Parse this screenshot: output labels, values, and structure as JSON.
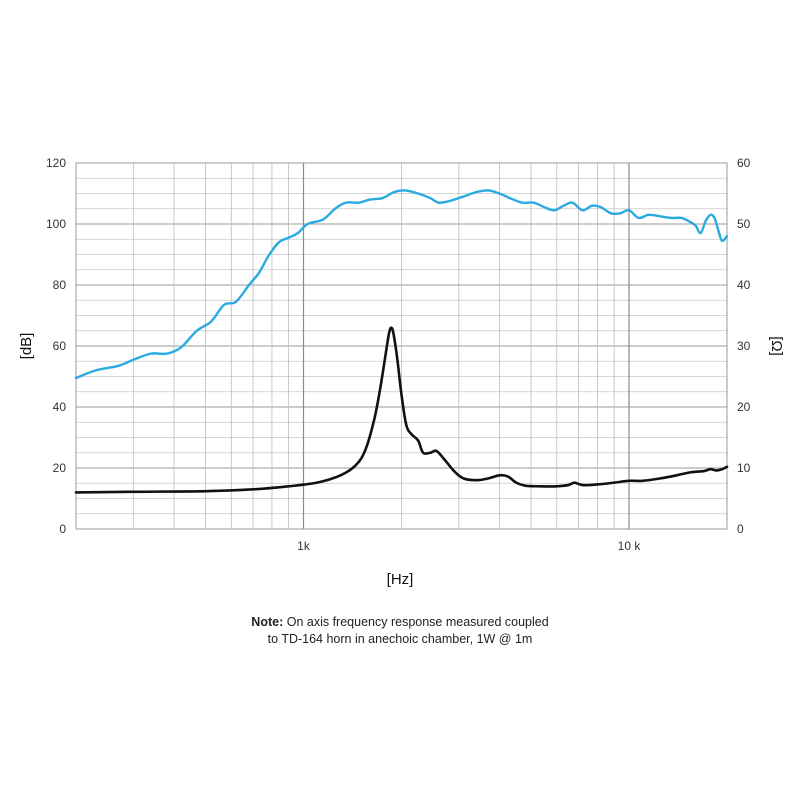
{
  "chart_data": {
    "type": "line",
    "x_scale": "log",
    "xlabel": "[Hz]",
    "ylabel": "[dB]",
    "y2label": "[Ω]",
    "xlim": [
      200,
      20000
    ],
    "ylim": [
      0,
      120
    ],
    "y2lim": [
      0,
      60
    ],
    "x_tick_labels": [
      {
        "value": 1000,
        "label": "1k"
      },
      {
        "value": 10000,
        "label": "10 k"
      }
    ],
    "y_ticks": [
      0,
      20,
      40,
      60,
      80,
      100,
      120
    ],
    "y2_ticks": [
      0,
      10,
      20,
      30,
      40,
      50,
      60
    ],
    "grid": true,
    "series": [
      {
        "axis": "left",
        "color": "#29abe2",
        "points": [
          [
            200,
            49.5
          ],
          [
            230,
            52
          ],
          [
            270,
            53.5
          ],
          [
            300,
            55.5
          ],
          [
            340,
            57.5
          ],
          [
            380,
            57.5
          ],
          [
            420,
            59.5
          ],
          [
            470,
            65
          ],
          [
            520,
            68
          ],
          [
            570,
            73.5
          ],
          [
            620,
            74.5
          ],
          [
            680,
            80
          ],
          [
            730,
            84
          ],
          [
            780,
            89.5
          ],
          [
            840,
            94
          ],
          [
            900,
            95.5
          ],
          [
            960,
            97
          ],
          [
            1030,
            100
          ],
          [
            1150,
            101.5
          ],
          [
            1250,
            105
          ],
          [
            1350,
            107
          ],
          [
            1480,
            107
          ],
          [
            1600,
            108
          ],
          [
            1750,
            108.5
          ],
          [
            1900,
            110.5
          ],
          [
            2050,
            111
          ],
          [
            2250,
            110
          ],
          [
            2450,
            108.5
          ],
          [
            2600,
            107
          ],
          [
            2800,
            107.5
          ],
          [
            3100,
            109
          ],
          [
            3400,
            110.5
          ],
          [
            3700,
            111
          ],
          [
            4000,
            110
          ],
          [
            4300,
            108.5
          ],
          [
            4700,
            107
          ],
          [
            5100,
            107
          ],
          [
            5500,
            105.5
          ],
          [
            5900,
            104.5
          ],
          [
            6300,
            106
          ],
          [
            6700,
            107
          ],
          [
            7200,
            104.5
          ],
          [
            7700,
            106
          ],
          [
            8200,
            105.5
          ],
          [
            8800,
            103.5
          ],
          [
            9400,
            103.5
          ],
          [
            10000,
            104.5
          ],
          [
            10700,
            102
          ],
          [
            11500,
            103
          ],
          [
            12500,
            102.5
          ],
          [
            13500,
            102
          ],
          [
            14500,
            102
          ],
          [
            15200,
            101
          ],
          [
            16000,
            99.5
          ],
          [
            16600,
            97
          ],
          [
            17200,
            101
          ],
          [
            17800,
            103
          ],
          [
            18300,
            102
          ],
          [
            18800,
            98
          ],
          [
            19300,
            94.5
          ],
          [
            20000,
            96
          ]
        ]
      },
      {
        "axis": "right",
        "color": "#111111",
        "points": [
          [
            200,
            6
          ],
          [
            300,
            6.1
          ],
          [
            500,
            6.2
          ],
          [
            700,
            6.5
          ],
          [
            900,
            7
          ],
          [
            1100,
            7.6
          ],
          [
            1300,
            8.8
          ],
          [
            1450,
            10.5
          ],
          [
            1550,
            13
          ],
          [
            1650,
            18
          ],
          [
            1720,
            23
          ],
          [
            1780,
            28
          ],
          [
            1830,
            32
          ],
          [
            1860,
            33
          ],
          [
            1890,
            32
          ],
          [
            1940,
            28
          ],
          [
            2000,
            22
          ],
          [
            2070,
            17
          ],
          [
            2150,
            15.5
          ],
          [
            2250,
            14.5
          ],
          [
            2330,
            12.5
          ],
          [
            2450,
            12.5
          ],
          [
            2560,
            12.8
          ],
          [
            2700,
            11.5
          ],
          [
            2900,
            9.5
          ],
          [
            3100,
            8.3
          ],
          [
            3400,
            8
          ],
          [
            3700,
            8.3
          ],
          [
            4000,
            8.8
          ],
          [
            4250,
            8.6
          ],
          [
            4500,
            7.6
          ],
          [
            4800,
            7.1
          ],
          [
            5300,
            7
          ],
          [
            6000,
            7
          ],
          [
            6500,
            7.2
          ],
          [
            6800,
            7.6
          ],
          [
            7200,
            7.2
          ],
          [
            8000,
            7.3
          ],
          [
            9000,
            7.6
          ],
          [
            10000,
            7.9
          ],
          [
            11000,
            7.9
          ],
          [
            12500,
            8.3
          ],
          [
            14000,
            8.8
          ],
          [
            15500,
            9.3
          ],
          [
            17000,
            9.5
          ],
          [
            17800,
            9.8
          ],
          [
            18500,
            9.6
          ],
          [
            19300,
            9.8
          ],
          [
            20000,
            10.2
          ]
        ]
      }
    ]
  },
  "note": {
    "bold": "Note:",
    "line1": "On axis frequency response measured coupled",
    "line2": "to TD-164 horn in anechoic chamber, 1W @ 1m"
  }
}
